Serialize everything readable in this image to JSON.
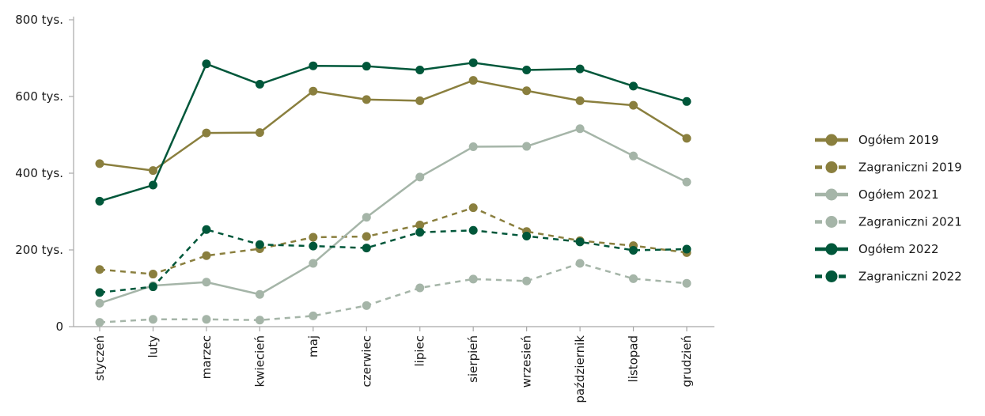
{
  "chart_data": {
    "type": "line",
    "title": "",
    "xlabel": "",
    "ylabel": "",
    "categories": [
      "styczeń",
      "luty",
      "marzec",
      "kwiecień",
      "maj",
      "czerwiec",
      "lipiec",
      "sierpień",
      "wrzesień",
      "październik",
      "listopad",
      "grudzień"
    ],
    "y_ticks": [
      {
        "value": 0,
        "label": "0"
      },
      {
        "value": 200000,
        "label": "200 tys."
      },
      {
        "value": 400000,
        "label": "400 tys."
      },
      {
        "value": 600000,
        "label": "600 tys."
      },
      {
        "value": 800000,
        "label": "800 tys."
      }
    ],
    "ylim": [
      0,
      800000
    ],
    "grid": false,
    "legend_position": "right",
    "series": [
      {
        "name": "Ogółem 2019",
        "color": "#8a7f3e",
        "style": "solid",
        "values": [
          425000,
          407000,
          505000,
          506000,
          614000,
          592000,
          589000,
          642000,
          615000,
          589000,
          577000,
          491000
        ]
      },
      {
        "name": "Zagraniczni 2019",
        "color": "#8a7f3e",
        "style": "dashed",
        "values": [
          149000,
          137000,
          185000,
          203000,
          233000,
          235000,
          265000,
          310000,
          248000,
          224000,
          211000,
          193000
        ]
      },
      {
        "name": "Ogółem 2021",
        "color": "#a5b5a8",
        "style": "solid",
        "values": [
          61000,
          107000,
          116000,
          84000,
          165000,
          285000,
          390000,
          469000,
          470000,
          516000,
          445000,
          377000
        ]
      },
      {
        "name": "Zagraniczni 2021",
        "color": "#a5b5a8",
        "style": "dashed",
        "values": [
          11000,
          19000,
          19000,
          17000,
          28000,
          55000,
          101000,
          124000,
          119000,
          165000,
          125000,
          113000
        ]
      },
      {
        "name": "Ogółem 2022",
        "color": "#00573a",
        "style": "solid",
        "values": [
          327000,
          369000,
          685000,
          632000,
          680000,
          679000,
          669000,
          688000,
          669000,
          672000,
          627000,
          587000
        ]
      },
      {
        "name": "Zagraniczni 2022",
        "color": "#00573a",
        "style": "dashed",
        "values": [
          89000,
          104000,
          253000,
          214000,
          210000,
          205000,
          246000,
          251000,
          236000,
          221000,
          199000,
          202000
        ]
      }
    ]
  }
}
